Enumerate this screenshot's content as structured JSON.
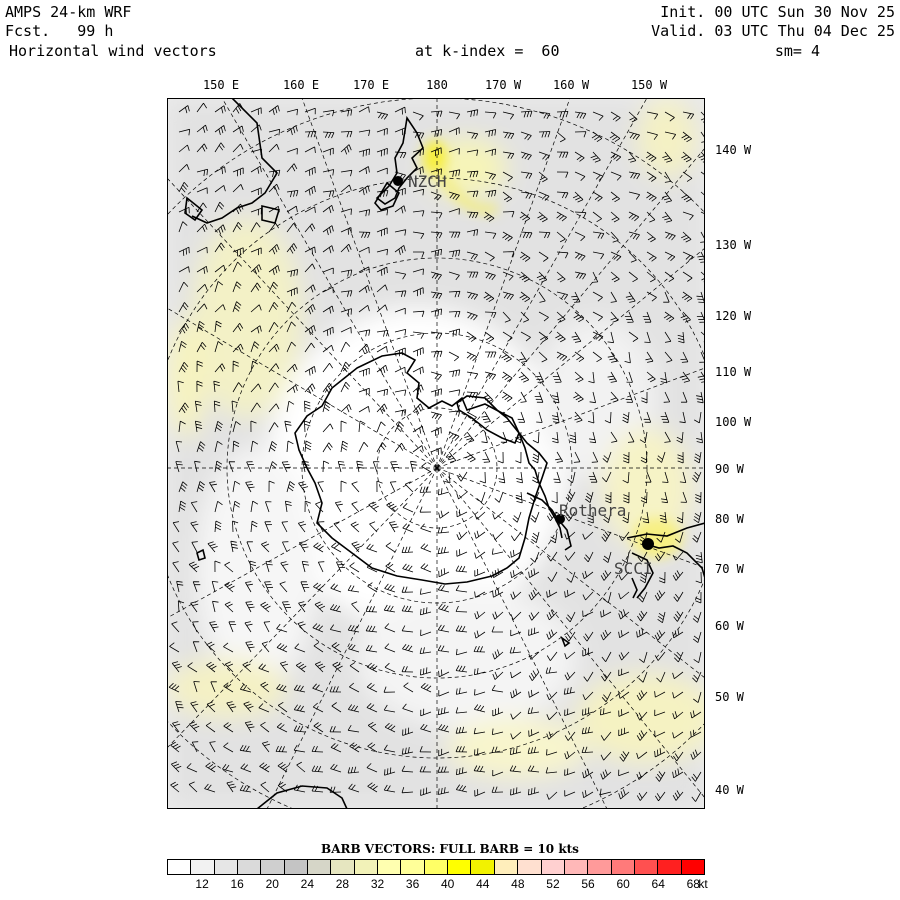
{
  "header": {
    "model": "AMPS 24-km WRF",
    "fcst": "Fcst.   99 h",
    "field": "Horizontal wind vectors",
    "init": "Init. 00 UTC Sun 30 Nov 25",
    "valid": "Valid. 03 UTC Thu 04 Dec 25",
    "k_index": "at k-index =  60",
    "smooth": "sm= 4"
  },
  "top_lon_labels": [
    "150 E",
    "160 E",
    "170 E",
    "180",
    "170 W",
    "160 W",
    "150 W"
  ],
  "right_lon_labels": [
    "140 W",
    "130 W",
    "120 W",
    "110 W",
    "100 W",
    "90 W",
    "80 W",
    "70 W",
    "60 W",
    "50 W",
    "40 W"
  ],
  "stations": [
    "NZCH",
    "Rothera",
    "SCCI"
  ],
  "legend": {
    "title": "BARB VECTORS:  FULL BARB = 10 kts",
    "ticks": [
      "12",
      "16",
      "20",
      "24",
      "28",
      "32",
      "36",
      "40",
      "44",
      "48",
      "52",
      "56",
      "60",
      "64",
      "68"
    ],
    "unit": "kt",
    "colors": [
      "#ffffff",
      "#f2f2f2",
      "#e6e6e6",
      "#dadada",
      "#cfcfcf",
      "#c4c4c4",
      "#d6d6c8",
      "#e6e6c0",
      "#f2f2b8",
      "#ffffb0",
      "#ffff99",
      "#ffff66",
      "#ffff00",
      "#f2f200",
      "#ffeebb",
      "#ffe0d0",
      "#ffd0d0",
      "#ffb8b8",
      "#ff9a9a",
      "#ff7a7a",
      "#ff5050",
      "#ff2020",
      "#ff0000"
    ]
  }
}
